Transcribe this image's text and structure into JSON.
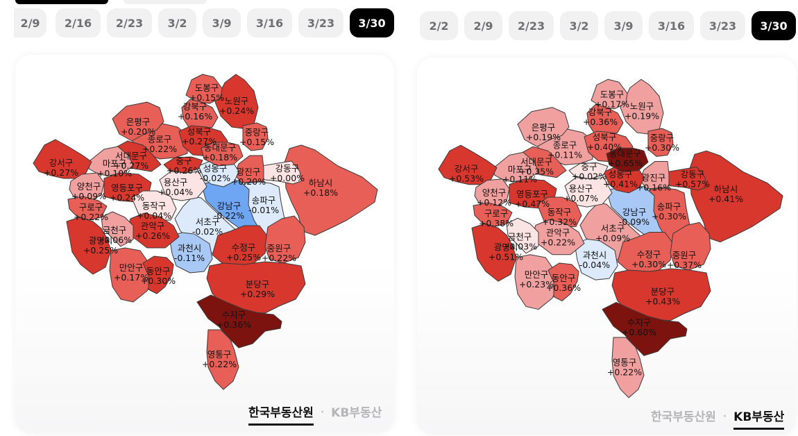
{
  "colors": {
    "chip_bg": "#f1f1f2",
    "chip_active_bg": "#000000",
    "dec_strong": "#6fa6f4",
    "dec_mid": "#a8c8f6",
    "dec_light": "#dceafc",
    "zero": "#fde4e4",
    "inc_1": "#f1a0a0",
    "inc_2": "#e75f57",
    "inc_3": "#d8372d",
    "inc_4": "#a8201a",
    "inc_5": "#7c130f"
  },
  "panels": [
    {
      "id": "left",
      "dates": [
        "2/9",
        "2/16",
        "2/23",
        "3/2",
        "3/9",
        "3/16",
        "3/23",
        "3/30"
      ],
      "active_date": "3/30",
      "sources": [
        "한국부동산원",
        "KB부동산"
      ],
      "active_source": "한국부동산원",
      "districts": {
        "dobong": {
          "name": "도봉구",
          "value": "+0.15%",
          "color": "#e75f57"
        },
        "nowon": {
          "name": "노원구",
          "value": "+0.24%",
          "color": "#d8372d"
        },
        "gangbuk": {
          "name": "강북구",
          "value": "+0.16%",
          "color": "#e75f57"
        },
        "eunpyeong": {
          "name": "은평구",
          "value": "+0.20%",
          "color": "#e75f57"
        },
        "jongno": {
          "name": "종로구",
          "value": "+0.22%",
          "color": "#e75f57"
        },
        "seongbuk": {
          "name": "성북구",
          "value": "+0.27%",
          "color": "#d8372d"
        },
        "jungnang": {
          "name": "중랑구",
          "value": "+0.15%",
          "color": "#e75f57"
        },
        "dongdaemun": {
          "name": "동대문구",
          "value": "+0.18%",
          "color": "#e75f57"
        },
        "seodaemun": {
          "name": "서대문구",
          "value": "+0.27%",
          "color": "#d8372d"
        },
        "mapo": {
          "name": "마포구",
          "value": "+0.10%",
          "color": "#f1a0a0"
        },
        "gangseo": {
          "name": "강서구",
          "value": "+0.27%",
          "color": "#d8372d"
        },
        "jung": {
          "name": "중구",
          "value": "+0.26%",
          "color": "#d8372d"
        },
        "seongdong": {
          "name": "성동구",
          "value": "-0.02%",
          "color": "#dceafc"
        },
        "gwangjin": {
          "name": "광진구",
          "value": "+0.20%",
          "color": "#e75f57"
        },
        "gangdong": {
          "name": "강동구",
          "value": "+0.00%",
          "color": "#fde4e4"
        },
        "yongsan": {
          "name": "용산구",
          "value": "+0.04%",
          "color": "#fde4e4"
        },
        "yangcheon": {
          "name": "양천구",
          "value": "+0.09%",
          "color": "#f1a0a0"
        },
        "yeongdeungpo": {
          "name": "영등포구",
          "value": "+0.24%",
          "color": "#d8372d"
        },
        "dongjak": {
          "name": "동작구",
          "value": "+0.04%",
          "color": "#fde4e4"
        },
        "guro": {
          "name": "구로구",
          "value": "+0.22%",
          "color": "#e75f57"
        },
        "geumcheon": {
          "name": "금천구",
          "value": "+0.06%",
          "color": "#f1a0a0"
        },
        "gwanak": {
          "name": "관악구",
          "value": "+0.26%",
          "color": "#d8372d"
        },
        "gangnam": {
          "name": "강남구",
          "value": "-0.22%",
          "color": "#6fa6f4"
        },
        "seocho": {
          "name": "서초구",
          "value": "-0.02%",
          "color": "#dceafc"
        },
        "songpa": {
          "name": "송파구",
          "value": "-0.01%",
          "color": "#dceafc"
        },
        "hanam": {
          "name": "하남시",
          "value": "+0.18%",
          "color": "#e75f57"
        },
        "gwangmyeong": {
          "name": "광명시",
          "value": "+0.25%",
          "color": "#d8372d"
        },
        "gwacheon": {
          "name": "과천시",
          "value": "-0.11%",
          "color": "#a8c8f6"
        },
        "sujeong": {
          "name": "수정구",
          "value": "+0.25%",
          "color": "#d8372d"
        },
        "jungwon": {
          "name": "중원구",
          "value": "+0.22%",
          "color": "#e75f57"
        },
        "manan": {
          "name": "만안구",
          "value": "+0.17%",
          "color": "#e75f57"
        },
        "dongan": {
          "name": "동안구",
          "value": "+0.30%",
          "color": "#d8372d"
        },
        "bundang": {
          "name": "분당구",
          "value": "+0.29%",
          "color": "#d8372d"
        },
        "suji": {
          "name": "수지구",
          "value": "+0.36%",
          "color": "#7c130f"
        },
        "yeongtong": {
          "name": "영통구",
          "value": "+0.22%",
          "color": "#e75f57"
        }
      }
    },
    {
      "id": "right",
      "dates": [
        "2/2",
        "2/9",
        "2/23",
        "3/2",
        "3/9",
        "3/16",
        "3/23",
        "3/30"
      ],
      "active_date": "3/30",
      "sources": [
        "한국부동산원",
        "KB부동산"
      ],
      "active_source": "KB부동산",
      "districts": {
        "dobong": {
          "name": "도봉구",
          "value": "+0.17%",
          "color": "#f1a0a0"
        },
        "nowon": {
          "name": "노원구",
          "value": "+0.19%",
          "color": "#f1a0a0"
        },
        "gangbuk": {
          "name": "강북구",
          "value": "+0.36%",
          "color": "#e75f57"
        },
        "eunpyeong": {
          "name": "은평구",
          "value": "+0.19%",
          "color": "#f1a0a0"
        },
        "jongno": {
          "name": "종로구",
          "value": "+0.11%",
          "color": "#f1a0a0"
        },
        "seongbuk": {
          "name": "성북구",
          "value": "+0.40%",
          "color": "#e75f57"
        },
        "jungnang": {
          "name": "중랑구",
          "value": "+0.30%",
          "color": "#e75f57"
        },
        "dongdaemun": {
          "name": "동대문구",
          "value": "+0.65%",
          "color": "#7c130f"
        },
        "seodaemun": {
          "name": "서대문구",
          "value": "+0.35%",
          "color": "#e75f57"
        },
        "mapo": {
          "name": "마포구",
          "value": "+0.11%",
          "color": "#f1a0a0"
        },
        "gangseo": {
          "name": "강서구",
          "value": "+0.53%",
          "color": "#d8372d"
        },
        "jung": {
          "name": "중구",
          "value": "+0.02%",
          "color": "#fde4e4"
        },
        "seongdong": {
          "name": "성동구",
          "value": "+0.41%",
          "color": "#d8372d"
        },
        "gwangjin": {
          "name": "광진구",
          "value": "+0.16%",
          "color": "#f1a0a0"
        },
        "gangdong": {
          "name": "강동구",
          "value": "+0.57%",
          "color": "#d8372d"
        },
        "yongsan": {
          "name": "용산구",
          "value": "+0.07%",
          "color": "#fde4e4"
        },
        "yangcheon": {
          "name": "양천구",
          "value": "+0.12%",
          "color": "#f1a0a0"
        },
        "yeongdeungpo": {
          "name": "영등포구",
          "value": "+0.47%",
          "color": "#d8372d"
        },
        "dongjak": {
          "name": "동작구",
          "value": "+0.32%",
          "color": "#e75f57"
        },
        "guro": {
          "name": "구로구",
          "value": "+0.38%",
          "color": "#e75f57"
        },
        "geumcheon": {
          "name": "금천구",
          "value": "+0.03%",
          "color": "#fde4e4"
        },
        "gwanak": {
          "name": "관악구",
          "value": "+0.22%",
          "color": "#f1a0a0"
        },
        "gangnam": {
          "name": "강남구",
          "value": "-0.09%",
          "color": "#a8c8f6"
        },
        "seocho": {
          "name": "서초구",
          "value": "+0.09%",
          "color": "#f1a0a0"
        },
        "songpa": {
          "name": "송파구",
          "value": "+0.30%",
          "color": "#e75f57"
        },
        "hanam": {
          "name": "하남시",
          "value": "+0.41%",
          "color": "#d8372d"
        },
        "gwangmyeong": {
          "name": "광명시",
          "value": "+0.51%",
          "color": "#d8372d"
        },
        "gwacheon": {
          "name": "과천시",
          "value": "-0.04%",
          "color": "#dceafc"
        },
        "sujeong": {
          "name": "수정구",
          "value": "+0.30%",
          "color": "#e75f57"
        },
        "jungwon": {
          "name": "중원구",
          "value": "+0.37%",
          "color": "#e75f57"
        },
        "manan": {
          "name": "만안구",
          "value": "+0.23%",
          "color": "#f1a0a0"
        },
        "dongan": {
          "name": "동안구",
          "value": "+0.36%",
          "color": "#e75f57"
        },
        "bundang": {
          "name": "분당구",
          "value": "+0.43%",
          "color": "#d8372d"
        },
        "suji": {
          "name": "수지구",
          "value": "+0.60%",
          "color": "#7c130f"
        },
        "yeongtong": {
          "name": "영통구",
          "value": "+0.22%",
          "color": "#f1a0a0"
        }
      }
    }
  ]
}
